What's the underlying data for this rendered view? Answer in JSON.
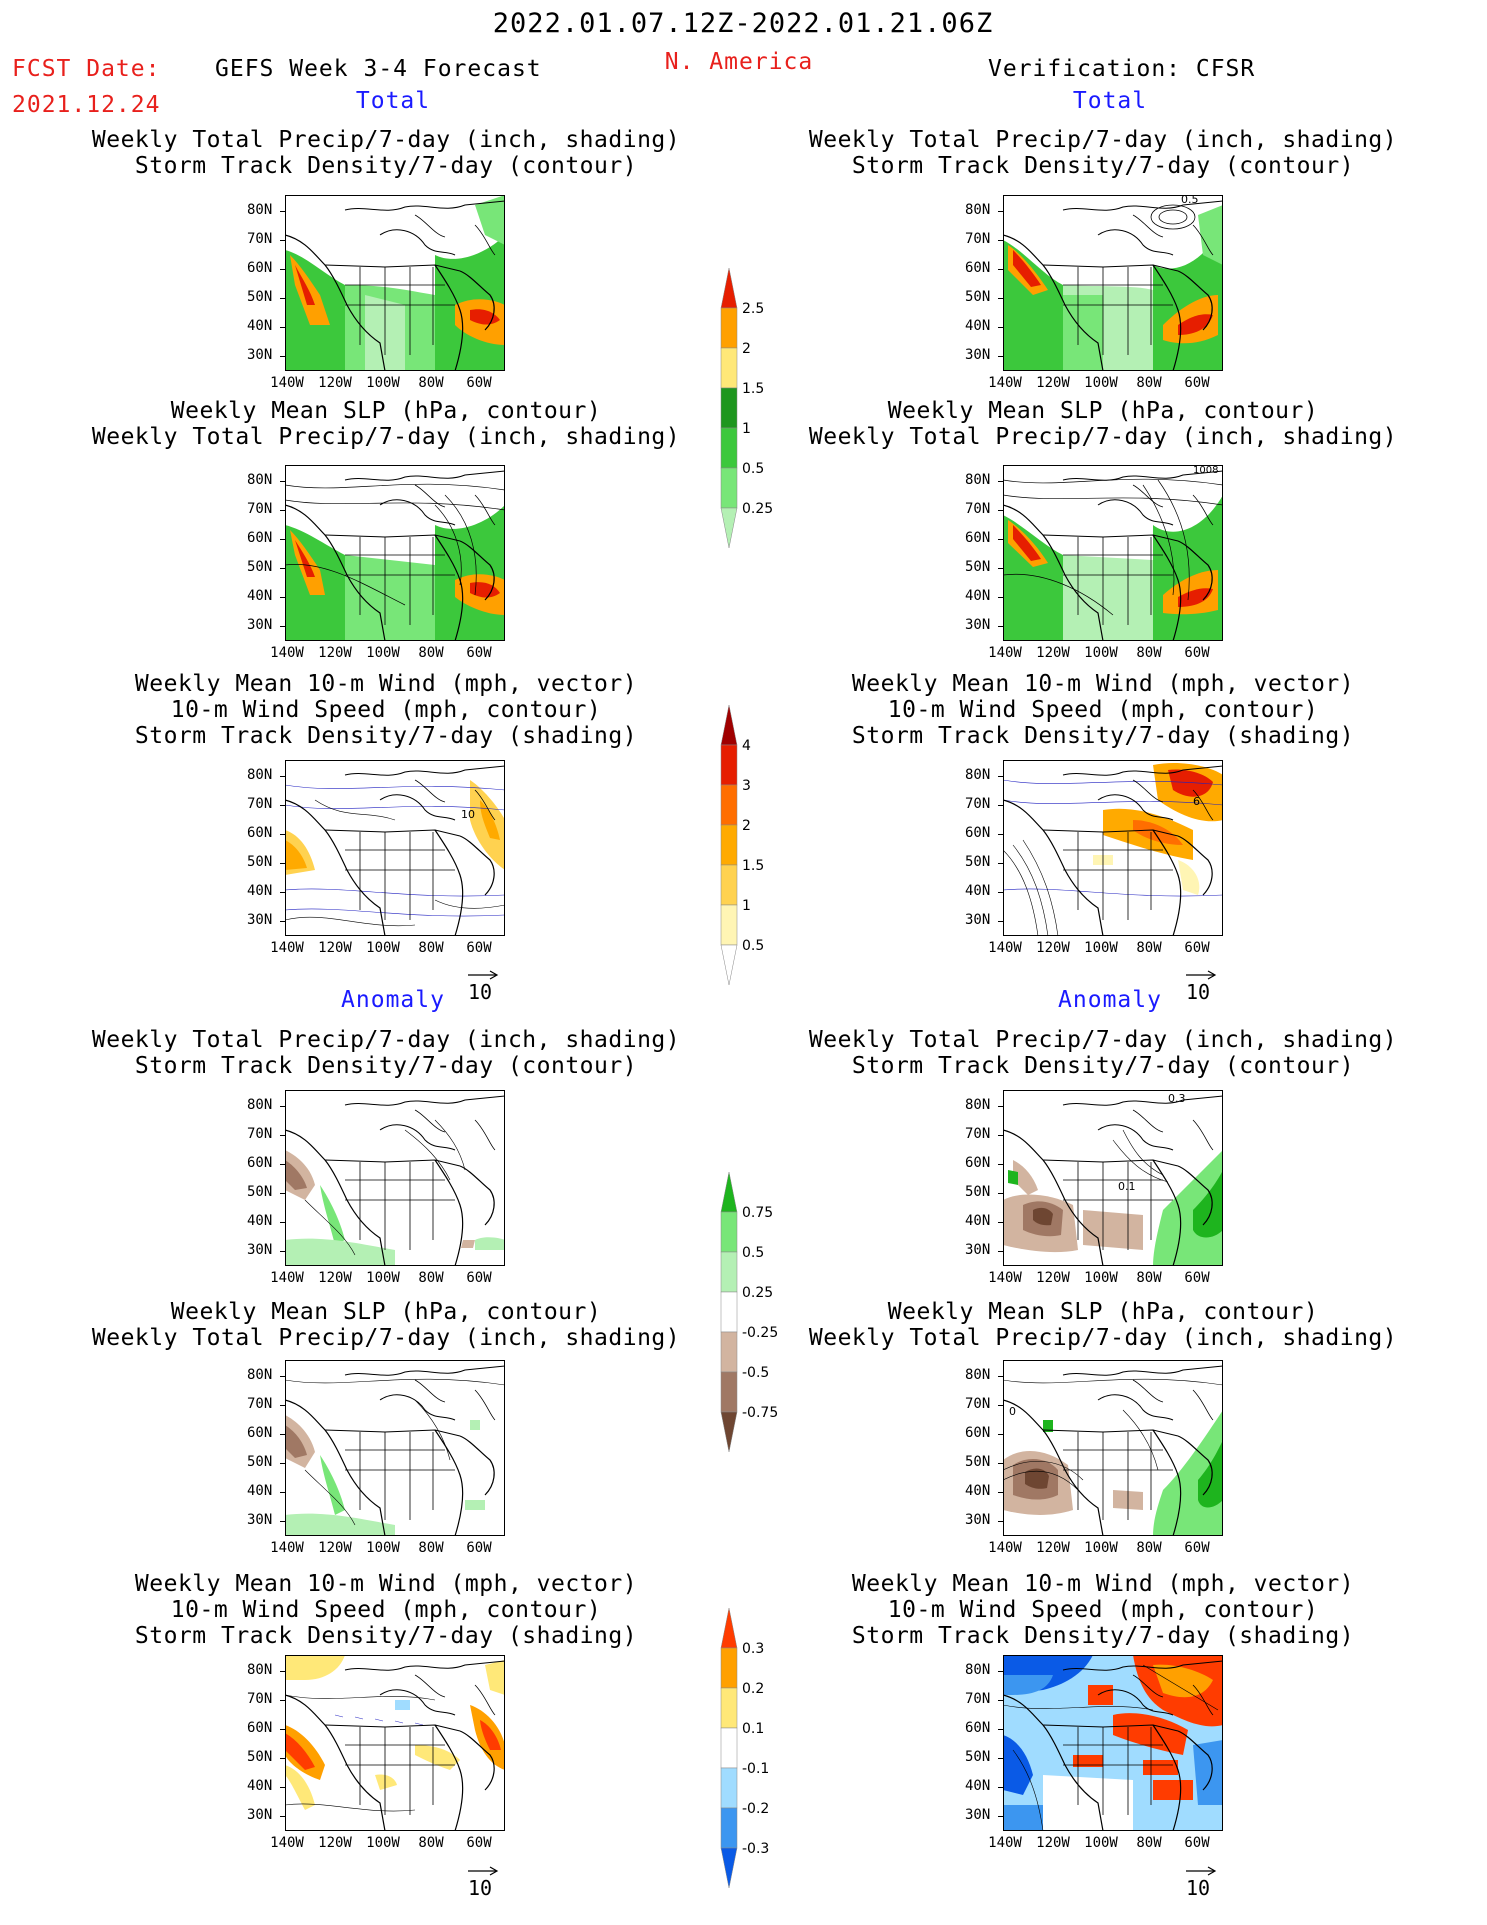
{
  "header": {
    "date_range": "2022.01.07.12Z-2022.01.21.06Z",
    "fcst_label": "FCST Date:",
    "fcst_date": "2021.12.24",
    "forecast_name": "GEFS Week 3-4 Forecast",
    "region": "N. America",
    "verification": "Verification: CFSR"
  },
  "sections": {
    "total": "Total",
    "anomaly": "Anomaly"
  },
  "panel_titles": {
    "precip_track": [
      "Weekly Total Precip/7-day (inch, shading)",
      "Storm Track Density/7-day (contour)"
    ],
    "slp_precip": [
      "Weekly Mean SLP (hPa, contour)",
      "Weekly Total Precip/7-day (inch, shading)"
    ],
    "wind_track": [
      "Weekly Mean 10-m Wind (mph, vector)",
      "10-m Wind Speed (mph, contour)",
      "Storm Track Density/7-day (shading)"
    ]
  },
  "axes": {
    "lat_labels": [
      "80N",
      "70N",
      "60N",
      "50N",
      "40N",
      "30N"
    ],
    "lon_labels": [
      "140W",
      "120W",
      "100W",
      "80W",
      "60W"
    ]
  },
  "vector_reference": "10",
  "contour_labels": {
    "obs_total_precip": "0.5",
    "obs_total_slp": "1008",
    "fcst_total_wind": "10",
    "obs_total_wind": "6",
    "obs_anom_precip_a": "0.3",
    "obs_anom_precip_b": "0.1",
    "obs_anom_slp": "0"
  },
  "colorbars": {
    "total_precip": {
      "levels": [
        "0.25",
        "0.5",
        "1",
        "1.5",
        "2",
        "2.5"
      ],
      "colors": [
        "#b4f0b4",
        "#78e678",
        "#3cc83c",
        "#1e961e",
        "#ffe878",
        "#ffa000",
        "#e61e00"
      ]
    },
    "total_track": {
      "levels": [
        "0.5",
        "1",
        "1.5",
        "2",
        "3",
        "4"
      ],
      "colors": [
        "#ffffff",
        "#fff5b4",
        "#ffd250",
        "#ffaa00",
        "#ff6e00",
        "#e61e00",
        "#a00000"
      ]
    },
    "anom_precip": {
      "levels": [
        "-0.75",
        "-0.5",
        "-0.25",
        "0.25",
        "0.5",
        "0.75"
      ],
      "colors": [
        "#6e4632",
        "#a07864",
        "#d2b4a0",
        "#ffffff",
        "#b4f0b4",
        "#78e678",
        "#1eb41e"
      ]
    },
    "anom_track": {
      "levels": [
        "-0.3",
        "-0.2",
        "-0.1",
        "0.1",
        "0.2",
        "0.3"
      ],
      "colors": [
        "#0a5ae6",
        "#3c96f0",
        "#a0dcff",
        "#ffffff",
        "#ffe878",
        "#ffa000",
        "#ff3c00"
      ]
    }
  },
  "colors": {
    "title_red": "#e8201c",
    "label_blue": "#1a1aff"
  }
}
